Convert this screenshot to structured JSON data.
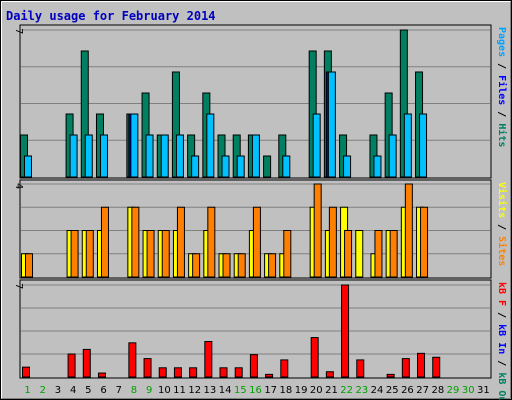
{
  "chart_data": {
    "type": "bar",
    "title": "Daily usage for February 2014",
    "categories": [
      "1",
      "2",
      "3",
      "4",
      "5",
      "6",
      "7",
      "8",
      "9",
      "10",
      "11",
      "12",
      "13",
      "14",
      "15",
      "16",
      "17",
      "18",
      "19",
      "20",
      "21",
      "22",
      "23",
      "24",
      "25",
      "26",
      "27",
      "28",
      "29",
      "30",
      "31"
    ],
    "weekend_days": [
      "1",
      "2",
      "8",
      "9",
      "15",
      "16",
      "22",
      "23",
      "29",
      "30"
    ],
    "panels": [
      {
        "name": "pages_files_hits",
        "ymax_label": "7",
        "ymax": 7,
        "y_axis_label": [
          {
            "text": "Pages",
            "color": "#00a0ff"
          },
          {
            "text": " / ",
            "color": "#000000"
          },
          {
            "text": "Files",
            "color": "#0000ff"
          },
          {
            "text": " / ",
            "color": "#000000"
          },
          {
            "text": "Hits",
            "color": "#008060"
          }
        ],
        "series": [
          {
            "name": "Hits",
            "color": "#008060",
            "values": [
              2,
              0,
              0,
              3,
              6,
              3,
              0,
              3,
              4,
              2,
              5,
              2,
              4,
              2,
              2,
              2,
              1,
              2,
              0,
              6,
              6,
              2,
              0,
              2,
              4,
              7,
              5,
              0,
              0,
              0,
              0
            ]
          },
          {
            "name": "Files",
            "color": "#0000ff",
            "values": [
              0,
              0,
              0,
              0,
              0,
              0,
              0,
              3,
              0,
              0,
              0,
              0,
              0,
              0,
              0,
              0,
              0,
              0,
              0,
              0,
              5,
              0,
              0,
              0,
              0,
              0,
              0,
              0,
              0,
              0,
              0
            ]
          },
          {
            "name": "Pages",
            "color": "#00c0ff",
            "values": [
              1,
              0,
              0,
              2,
              2,
              2,
              0,
              3,
              2,
              2,
              2,
              1,
              3,
              1,
              1,
              2,
              0,
              1,
              0,
              3,
              5,
              1,
              0,
              1,
              2,
              3,
              3,
              0,
              0,
              0,
              0
            ]
          }
        ]
      },
      {
        "name": "visits_sites",
        "ymax_label": "4",
        "ymax": 4,
        "y_axis_label": [
          {
            "text": "Visits",
            "color": "#ffff00"
          },
          {
            "text": " / ",
            "color": "#000000"
          },
          {
            "text": "Sites",
            "color": "#ff8000"
          }
        ],
        "series": [
          {
            "name": "Visits",
            "color": "#ffff00",
            "values": [
              1,
              0,
              0,
              2,
              2,
              2,
              0,
              3,
              2,
              2,
              2,
              1,
              2,
              1,
              1,
              2,
              1,
              1,
              0,
              3,
              2,
              3,
              2,
              1,
              2,
              3,
              3,
              0,
              0,
              0,
              0
            ]
          },
          {
            "name": "Sites",
            "color": "#ff8000",
            "values": [
              1,
              0,
              0,
              2,
              2,
              3,
              0,
              3,
              2,
              2,
              3,
              1,
              3,
              1,
              1,
              3,
              1,
              2,
              0,
              4,
              3,
              2,
              0,
              2,
              2,
              4,
              3,
              0,
              0,
              0,
              0
            ]
          }
        ]
      },
      {
        "name": "kb",
        "ymax_label": "7",
        "ymax": 7,
        "y_axis_label": [
          {
            "text": "kB F",
            "color": "#ff0000"
          },
          {
            "text": " / ",
            "color": "#000000"
          },
          {
            "text": "kB In",
            "color": "#0000ff"
          },
          {
            "text": " / ",
            "color": "#000000"
          },
          {
            "text": "kB Out",
            "color": "#008060"
          }
        ],
        "series": [
          {
            "name": "kB F",
            "color": "#ff0000",
            "values": [
              0.75,
              0,
              0,
              1.75,
              2.1,
              0.3,
              0,
              2.6,
              1.4,
              0.7,
              0.7,
              0.7,
              2.7,
              0.7,
              0.7,
              1.7,
              0.2,
              1.3,
              0,
              3.0,
              0.4,
              7,
              1.3,
              0,
              0.2,
              1.4,
              1.8,
              1.5,
              0,
              0,
              0
            ]
          }
        ]
      }
    ]
  }
}
